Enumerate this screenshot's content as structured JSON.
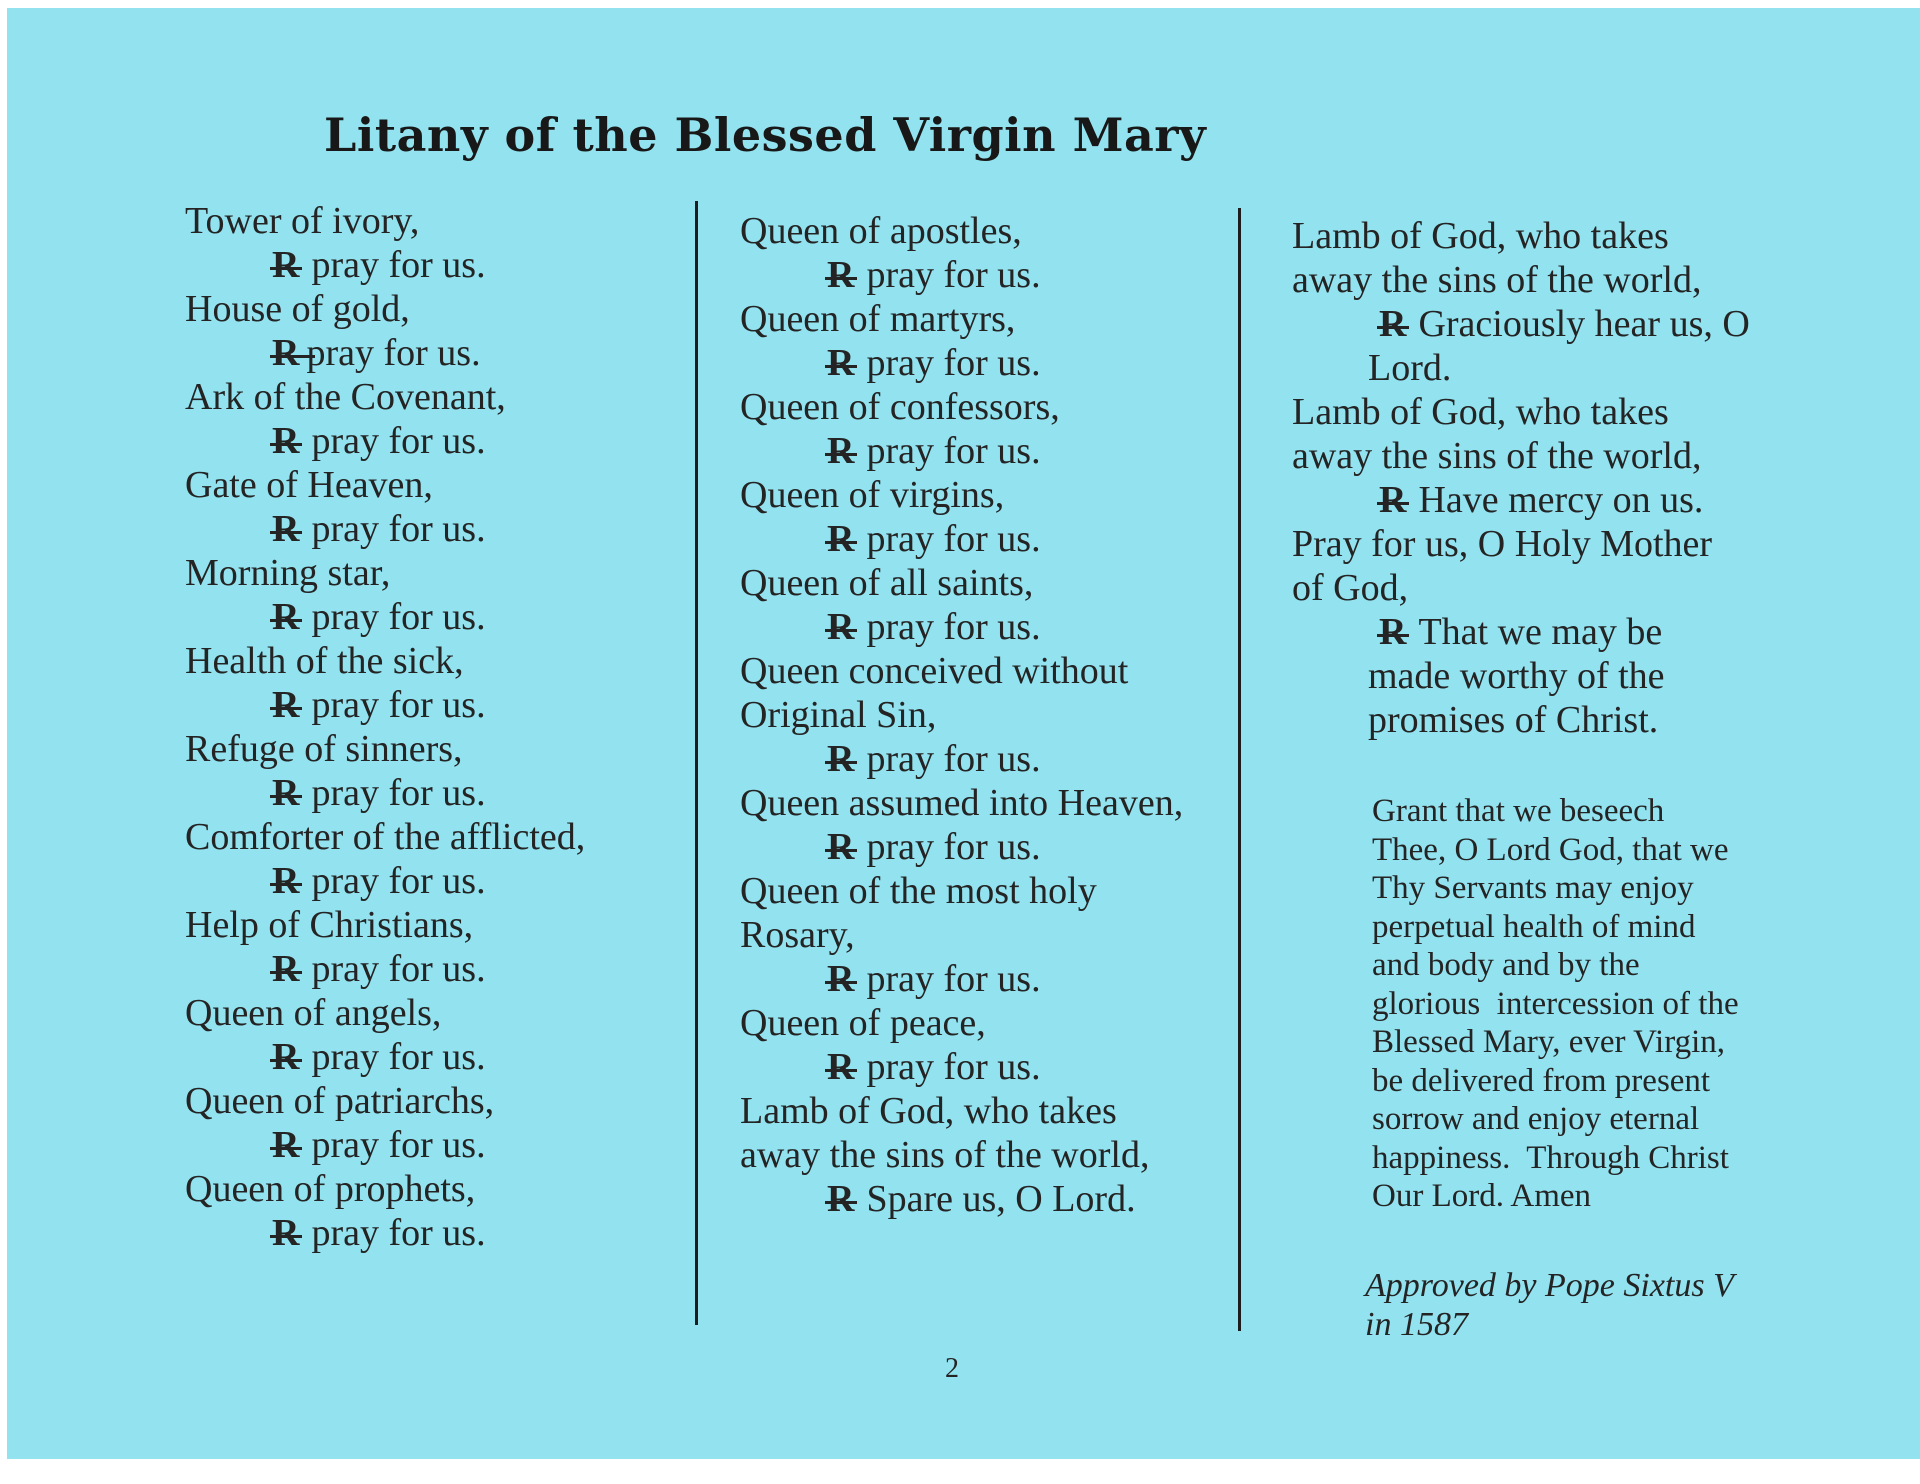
{
  "page": {
    "title": "Litany of the Blessed Virgin Mary",
    "page_number": "2",
    "paper_color": "#92E2EF",
    "text_color": "#242424"
  },
  "symbols": {
    "response_r": "R"
  },
  "columns": [
    {
      "lines": [
        {
          "type": "call",
          "text": "Tower of ivory,"
        },
        {
          "type": "resp",
          "text": "pray for us."
        },
        {
          "type": "call",
          "text": "House of gold,"
        },
        {
          "type": "resp",
          "joined": true,
          "text": "pray for us."
        },
        {
          "type": "call",
          "text": "Ark of the Covenant,"
        },
        {
          "type": "resp",
          "text": "pray for us."
        },
        {
          "type": "call",
          "text": "Gate of Heaven,"
        },
        {
          "type": "resp",
          "text": "pray for us."
        },
        {
          "type": "call",
          "text": "Morning star,"
        },
        {
          "type": "resp",
          "text": "pray for us."
        },
        {
          "type": "call",
          "text": "Health of the sick,"
        },
        {
          "type": "resp",
          "text": "pray for us."
        },
        {
          "type": "call",
          "text": "Refuge of sinners,"
        },
        {
          "type": "resp",
          "text": "pray for us."
        },
        {
          "type": "call",
          "text": "Comforter of the afflicted,"
        },
        {
          "type": "resp",
          "text": "pray for us."
        },
        {
          "type": "call",
          "text": "Help of Christians,"
        },
        {
          "type": "resp",
          "text": "pray for us."
        },
        {
          "type": "call",
          "text": "Queen of angels,"
        },
        {
          "type": "resp",
          "text": "pray for us."
        },
        {
          "type": "call",
          "text": "Queen of patriarchs,"
        },
        {
          "type": "resp",
          "text": "pray for us."
        },
        {
          "type": "call",
          "text": "Queen of prophets,"
        },
        {
          "type": "resp",
          "text": "pray for us."
        }
      ]
    },
    {
      "lines": [
        {
          "type": "call",
          "text": "Queen of apostles,"
        },
        {
          "type": "resp",
          "text": "pray for us."
        },
        {
          "type": "call",
          "text": "Queen of martyrs,"
        },
        {
          "type": "resp",
          "text": "pray for us."
        },
        {
          "type": "call",
          "text": "Queen of confessors,"
        },
        {
          "type": "resp",
          "text": "pray for us."
        },
        {
          "type": "call",
          "text": "Queen of virgins,"
        },
        {
          "type": "resp",
          "text": "pray for us."
        },
        {
          "type": "call",
          "text": "Queen of all saints,"
        },
        {
          "type": "resp",
          "text": "pray for us."
        },
        {
          "type": "call",
          "text": "Queen conceived without"
        },
        {
          "type": "call",
          "text": "Original Sin,"
        },
        {
          "type": "resp",
          "text": "pray for us."
        },
        {
          "type": "call",
          "text": "Queen assumed into Heaven,"
        },
        {
          "type": "resp",
          "text": "pray for us."
        },
        {
          "type": "call",
          "text": "Queen of the most holy"
        },
        {
          "type": "call",
          "text": "Rosary,"
        },
        {
          "type": "resp",
          "text": "pray for us."
        },
        {
          "type": "call",
          "text": "Queen of peace,"
        },
        {
          "type": "resp",
          "text": "pray for us."
        },
        {
          "type": "call",
          "text": "Lamb of God, who takes"
        },
        {
          "type": "call",
          "text": "away the sins of the world,"
        },
        {
          "type": "resp",
          "text": "Spare us, O Lord."
        }
      ]
    },
    {
      "lines": [
        {
          "type": "call",
          "text": "Lamb of God, who takes"
        },
        {
          "type": "call",
          "text": "away the sins of the world,"
        },
        {
          "type": "resp",
          "text": "Graciously hear us, O"
        },
        {
          "type": "cont",
          "text": "Lord."
        },
        {
          "type": "call",
          "text": "Lamb of God, who takes"
        },
        {
          "type": "call",
          "text": "away the sins of the world,"
        },
        {
          "type": "resp",
          "text": "Have mercy on us."
        },
        {
          "type": "call",
          "text": "Pray for us, O Holy Mother"
        },
        {
          "type": "call",
          "text": "of God,"
        },
        {
          "type": "resp",
          "text": "That we may be"
        },
        {
          "type": "cont",
          "text": "made worthy of the"
        },
        {
          "type": "cont",
          "text": "promises of Christ."
        }
      ]
    }
  ],
  "prayer": {
    "lines": [
      "Grant that we beseech",
      "Thee, O Lord God, that we",
      "Thy Servants may enjoy",
      "perpetual health of mind",
      "and body and by the",
      "glorious  intercession of the",
      "Blessed Mary, ever Virgin,",
      "be delivered from present",
      "sorrow and enjoy eternal",
      "happiness.  Through Christ",
      "Our Lord. Amen"
    ]
  },
  "note": {
    "lines": [
      "Approved by Pope Sixtus V",
      "in 1587"
    ]
  }
}
